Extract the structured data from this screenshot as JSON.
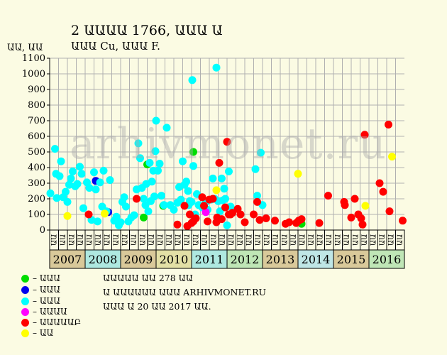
{
  "title_line1": "2 ԱԱԱԱ 1766, ԱԱԱ Ա",
  "title_line2": "ԱԱԱ Cu, ԱԱԱ F.",
  "y_axis_label": "ԱԱ, ԱԱ",
  "watermark": "arhivmonet.ru",
  "legend": [
    {
      "label": "– ԱԱԱ",
      "color": "#00dd00"
    },
    {
      "label": "– ԱԱԱ",
      "color": "#0000ee"
    },
    {
      "label": "– ԱԱԱ",
      "color": "#00ffff"
    },
    {
      "label": "– ԱԱԱԱ",
      "color": "#ff00ff"
    },
    {
      "label": "– ԱԱԱԱԱԲ",
      "color": "#ff0000"
    },
    {
      "label": "– ԱԱ",
      "color": "#ffff00"
    }
  ],
  "notes": [
    "ԱԱԱԱԱ ԱԱ 278 ԱԱ",
    "Ա ԱԱԱԱԱԱ ԱԱԱ ARHIVMONET.RU",
    "ԱԱԱ Ա 20 ԱԱ 2017 ԱԱ."
  ],
  "chart_data": {
    "type": "scatter",
    "ylim": [
      0,
      1100
    ],
    "yticks": [
      0,
      100,
      200,
      300,
      400,
      500,
      600,
      700,
      800,
      900,
      1000,
      1100
    ],
    "grid": true,
    "years": [
      {
        "label": "2007",
        "color": "#d9c99a"
      },
      {
        "label": "2008",
        "color": "#aee8e0"
      },
      {
        "label": "2009",
        "color": "#d9c99a"
      },
      {
        "label": "2010",
        "color": "#e3e0a6"
      },
      {
        "label": "2011",
        "color": "#aee8e0"
      },
      {
        "label": "2012",
        "color": "#bfe6b6"
      },
      {
        "label": "2013",
        "color": "#d9c99a"
      },
      {
        "label": "2014",
        "color": "#bfe6e6"
      },
      {
        "label": "2015",
        "color": "#d9c99a"
      },
      {
        "label": "2016",
        "color": "#bfe6b6"
      }
    ],
    "quarter_labels": [
      "ԱԱ",
      "ԱԱ",
      "ԱԱ",
      "ԱԱ",
      "ԱԱ",
      "ԱԱ",
      "ԱԱ",
      "ԱԱ",
      "ԱԱ",
      "ԱԱ",
      "ԱԱ",
      "ԱԱ",
      "ԱԱ",
      "ԱԱ",
      "ԱԱ",
      "ԱԱ",
      "ԱԱ",
      "ԱԱ",
      "ԱԱ",
      "ԱԱ",
      "ԱԱ",
      "ԱԱ",
      "ԱԱ",
      "ԱԱ",
      "ԱԱ",
      "ԱԱ",
      "ԱԱ",
      "ԱԱ",
      "ԱԱ",
      "ԱԱ",
      "ԱԱ",
      "ԱԱ",
      "ԱԱ",
      "ԱԱ",
      "ԱԱ",
      "ԱԱ",
      "ԱԱ",
      "ԱԱ",
      "ԱԱ",
      "ԱԱ"
    ],
    "series": [
      {
        "color": "#00dd00",
        "points": [
          [
            2009.65,
            80
          ],
          [
            2009.75,
            420
          ],
          [
            2010.2,
            155
          ],
          [
            2011.05,
            500
          ],
          [
            2014.1,
            40
          ]
        ]
      },
      {
        "color": "#0000ee",
        "points": [
          [
            2008.3,
            315
          ],
          [
            2008.65,
            115
          ]
        ]
      },
      {
        "color": "#00ffff",
        "points": [
          [
            2007.02,
            235
          ],
          [
            2007.15,
            520
          ],
          [
            2007.18,
            360
          ],
          [
            2007.2,
            205
          ],
          [
            2007.28,
            345
          ],
          [
            2007.32,
            440
          ],
          [
            2007.38,
            210
          ],
          [
            2007.45,
            245
          ],
          [
            2007.5,
            180
          ],
          [
            2007.55,
            290
          ],
          [
            2007.6,
            330
          ],
          [
            2007.65,
            375
          ],
          [
            2007.72,
            280
          ],
          [
            2007.78,
            295
          ],
          [
            2007.85,
            405
          ],
          [
            2007.9,
            360
          ],
          [
            2007.95,
            140
          ],
          [
            2008.05,
            305
          ],
          [
            2008.12,
            270
          ],
          [
            2008.18,
            65
          ],
          [
            2008.25,
            370
          ],
          [
            2008.3,
            260
          ],
          [
            2008.35,
            55
          ],
          [
            2008.42,
            305
          ],
          [
            2008.48,
            150
          ],
          [
            2008.52,
            380
          ],
          [
            2008.6,
            120
          ],
          [
            2008.7,
            320
          ],
          [
            2008.82,
            60
          ],
          [
            2008.88,
            85
          ],
          [
            2008.95,
            30
          ],
          [
            2009.0,
            50
          ],
          [
            2009.05,
            180
          ],
          [
            2009.1,
            210
          ],
          [
            2009.15,
            150
          ],
          [
            2009.22,
            55
          ],
          [
            2009.3,
            80
          ],
          [
            2009.38,
            95
          ],
          [
            2009.45,
            260
          ],
          [
            2009.5,
            555
          ],
          [
            2009.55,
            460
          ],
          [
            2009.6,
            270
          ],
          [
            2009.65,
            200
          ],
          [
            2009.7,
            160
          ],
          [
            2009.72,
            295
          ],
          [
            2009.78,
            120
          ],
          [
            2009.82,
            430
          ],
          [
            2009.85,
            185
          ],
          [
            2009.88,
            310
          ],
          [
            2009.92,
            380
          ],
          [
            2009.95,
            215
          ],
          [
            2009.98,
            505
          ],
          [
            2010.0,
            700
          ],
          [
            2010.05,
            380
          ],
          [
            2010.1,
            425
          ],
          [
            2010.15,
            220
          ],
          [
            2010.22,
            160
          ],
          [
            2010.3,
            655
          ],
          [
            2010.4,
            160
          ],
          [
            2010.5,
            130
          ],
          [
            2010.6,
            175
          ],
          [
            2010.65,
            275
          ],
          [
            2010.7,
            195
          ],
          [
            2010.75,
            440
          ],
          [
            2010.8,
            290
          ],
          [
            2010.85,
            310
          ],
          [
            2010.9,
            250
          ],
          [
            2010.92,
            160
          ],
          [
            2010.95,
            185
          ],
          [
            2011.0,
            180
          ],
          [
            2011.02,
            960
          ],
          [
            2011.05,
            410
          ],
          [
            2011.1,
            100
          ],
          [
            2011.15,
            230
          ],
          [
            2011.2,
            160
          ],
          [
            2011.3,
            145
          ],
          [
            2011.4,
            180
          ],
          [
            2011.45,
            130
          ],
          [
            2011.55,
            195
          ],
          [
            2011.6,
            330
          ],
          [
            2011.65,
            200
          ],
          [
            2011.7,
            1040
          ],
          [
            2011.75,
            185
          ],
          [
            2011.8,
            120
          ],
          [
            2011.85,
            330
          ],
          [
            2011.88,
            190
          ],
          [
            2011.92,
            265
          ],
          [
            2011.95,
            200
          ],
          [
            2012.0,
            30
          ],
          [
            2012.05,
            375
          ],
          [
            2012.1,
            150
          ],
          [
            2012.8,
            390
          ],
          [
            2012.85,
            220
          ],
          [
            2012.95,
            495
          ],
          [
            2013.0,
            160
          ]
        ]
      },
      {
        "color": "#ff00ff",
        "points": [
          [
            2011.4,
            115
          ]
        ]
      },
      {
        "color": "#ff0000",
        "points": [
          [
            2008.1,
            100
          ],
          [
            2009.45,
            200
          ],
          [
            2010.6,
            35
          ],
          [
            2010.8,
            155
          ],
          [
            2010.88,
            25
          ],
          [
            2010.95,
            100
          ],
          [
            2011.0,
            45
          ],
          [
            2011.05,
            55
          ],
          [
            2011.12,
            75
          ],
          [
            2011.3,
            210
          ],
          [
            2011.35,
            155
          ],
          [
            2011.45,
            55
          ],
          [
            2011.5,
            195
          ],
          [
            2011.6,
            200
          ],
          [
            2011.7,
            50
          ],
          [
            2011.72,
            80
          ],
          [
            2011.78,
            430
          ],
          [
            2011.85,
            70
          ],
          [
            2011.95,
            145
          ],
          [
            2012.0,
            565
          ],
          [
            2012.05,
            100
          ],
          [
            2012.1,
            100
          ],
          [
            2012.15,
            110
          ],
          [
            2012.3,
            135
          ],
          [
            2012.38,
            100
          ],
          [
            2012.5,
            50
          ],
          [
            2012.75,
            100
          ],
          [
            2012.85,
            180
          ],
          [
            2012.92,
            65
          ],
          [
            2013.1,
            75
          ],
          [
            2013.35,
            60
          ],
          [
            2013.65,
            40
          ],
          [
            2013.75,
            50
          ],
          [
            2013.95,
            45
          ],
          [
            2014.02,
            60
          ],
          [
            2014.1,
            70
          ],
          [
            2014.6,
            45
          ],
          [
            2014.85,
            220
          ],
          [
            2015.3,
            180
          ],
          [
            2015.32,
            160
          ],
          [
            2015.5,
            80
          ],
          [
            2015.6,
            200
          ],
          [
            2015.7,
            100
          ],
          [
            2015.78,
            75
          ],
          [
            2015.82,
            35
          ],
          [
            2015.88,
            610
          ],
          [
            2016.3,
            300
          ],
          [
            2016.4,
            245
          ],
          [
            2016.55,
            675
          ],
          [
            2016.58,
            120
          ],
          [
            2016.95,
            60
          ]
        ]
      },
      {
        "color": "#ffff00",
        "points": [
          [
            2007.5,
            90
          ],
          [
            2008.55,
            105
          ],
          [
            2011.7,
            255
          ],
          [
            2014.0,
            360
          ],
          [
            2015.9,
            155
          ],
          [
            2016.65,
            470
          ]
        ]
      }
    ]
  }
}
